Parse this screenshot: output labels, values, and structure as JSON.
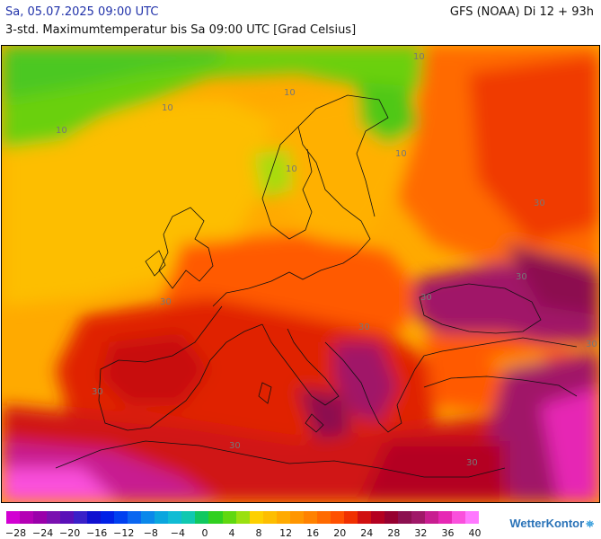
{
  "header": {
    "date": "Sa, 05.07.2025 09:00 UTC",
    "model": "GFS (NOAA) Di 12 + 93h",
    "description": "3-std. Maximumtemperatur bis Sa 09:00 UTC [Grad Celsius]"
  },
  "map": {
    "contour_labels": [
      "10",
      "10",
      "10",
      "10",
      "10",
      "10",
      "30",
      "30",
      "30",
      "30",
      "30",
      "30",
      "30",
      "30",
      "30"
    ]
  },
  "legend": {
    "colors": [
      "#d200d2",
      "#b400b4",
      "#9a00aa",
      "#7a10b0",
      "#5a10b8",
      "#3a20c8",
      "#1010d0",
      "#0020e6",
      "#0040f0",
      "#0a66f0",
      "#0a88ea",
      "#0aa6de",
      "#10bcd4",
      "#10c8b0",
      "#10c860",
      "#30d020",
      "#60d810",
      "#9ae010",
      "#fdd000",
      "#fdbe00",
      "#ffaa00",
      "#ff9600",
      "#ff8200",
      "#ff6a00",
      "#ff5000",
      "#f03000",
      "#d01010",
      "#b40020",
      "#960030",
      "#8c1050",
      "#a01868",
      "#c81e90",
      "#e628b4",
      "#fa50dc",
      "#ff78ff"
    ],
    "tick_labels": [
      "−28",
      "−24",
      "−20",
      "−16",
      "−12",
      "−8",
      "−4",
      "0",
      "4",
      "8",
      "12",
      "16",
      "20",
      "24",
      "28",
      "32",
      "36",
      "40"
    ]
  },
  "logo": {
    "text": "WetterKontor",
    "icon": "weather-station-icon"
  }
}
